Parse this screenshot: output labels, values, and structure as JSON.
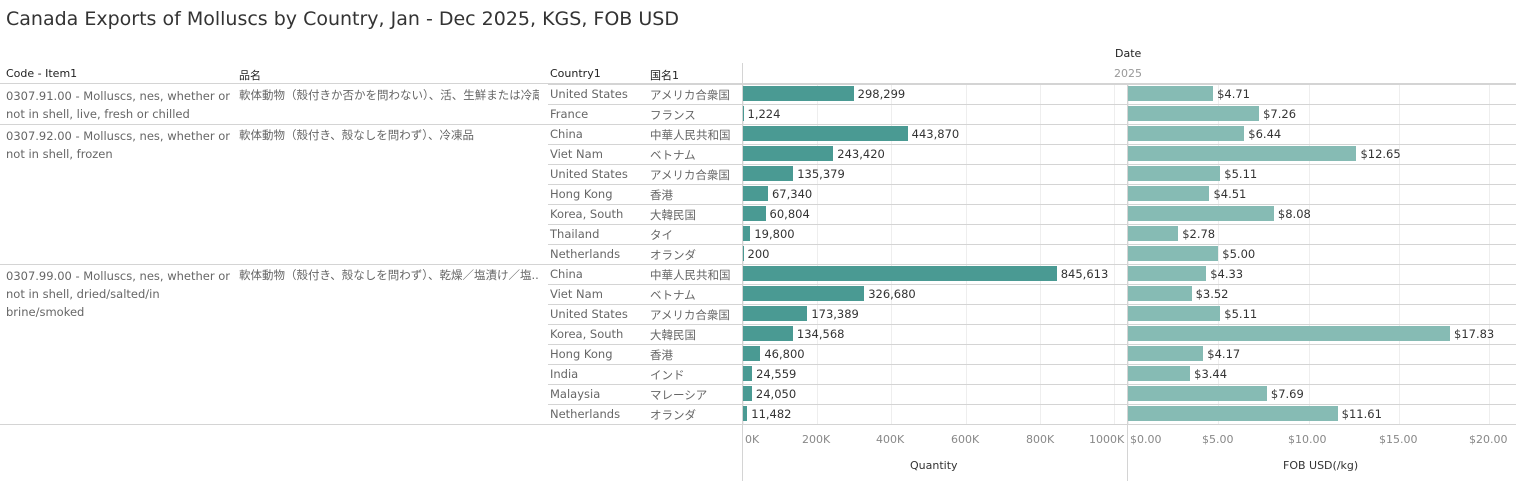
{
  "title": "Canada Exports of Molluscs by Country, Jan - Dec 2025, KGS, FOB USD",
  "headers": {
    "code": "Code - Item1",
    "name_jp": "品名",
    "country": "Country1",
    "country_jp": "国名1",
    "date": "Date",
    "year": "2025"
  },
  "groups": [
    {
      "code": "0307.91.00 - Molluscs, nes, whether or not in shell, live, fresh or chilled",
      "name_jp": "軟体動物（殻付きか否かを問わない）、活、生鮮または冷蔵",
      "rows": 2
    },
    {
      "code": "0307.92.00 - Molluscs, nes, whether or not in shell, frozen",
      "name_jp": "軟体動物（殻付き、殻なしを問わず）、冷凍品",
      "rows": 7
    },
    {
      "code": "0307.99.00 - Molluscs, nes, whether or not in shell, dried/salted/in brine/smoked",
      "name_jp": "軟体動物（殻付き、殻なしを問わず）、乾燥／塩漬け／塩..",
      "rows": 8
    }
  ],
  "chart_data": [
    {
      "type": "bar",
      "title": "Quantity",
      "xlabel": "Quantity",
      "xlim": [
        0,
        1000000
      ],
      "ticks": [
        "0K",
        "200K",
        "400K",
        "600K",
        "800K",
        "1000K"
      ],
      "categories": [
        "United States",
        "France",
        "China",
        "Viet Nam",
        "United States",
        "Hong Kong",
        "Korea, South",
        "Thailand",
        "Netherlands",
        "China",
        "Viet Nam",
        "United States",
        "Korea, South",
        "Hong Kong",
        "India",
        "Malaysia",
        "Netherlands"
      ],
      "categories_jp": [
        "アメリカ合衆国",
        "フランス",
        "中華人民共和国",
        "ベトナム",
        "アメリカ合衆国",
        "香港",
        "大韓民国",
        "タイ",
        "オランダ",
        "中華人民共和国",
        "ベトナム",
        "アメリカ合衆国",
        "大韓民国",
        "香港",
        "インド",
        "マレーシア",
        "オランダ"
      ],
      "values": [
        298299,
        1224,
        443870,
        243420,
        135379,
        67340,
        60804,
        19800,
        200,
        845613,
        326680,
        173389,
        134568,
        46800,
        24559,
        24050,
        11482
      ],
      "labels": [
        "298,299",
        "1,224",
        "443,870",
        "243,420",
        "135,379",
        "67,340",
        "60,804",
        "19,800",
        "200",
        "845,613",
        "326,680",
        "173,389",
        "134,568",
        "46,800",
        "24,559",
        "24,050",
        "11,482"
      ]
    },
    {
      "type": "bar",
      "title": "FOB USD(/kg)",
      "xlabel": "FOB USD(/kg)",
      "xlim": [
        0,
        20
      ],
      "ticks": [
        "$0.00",
        "$5.00",
        "$10.00",
        "$15.00",
        "$20.00"
      ],
      "values": [
        4.71,
        7.26,
        6.44,
        12.65,
        5.11,
        4.51,
        8.08,
        2.78,
        5.0,
        4.33,
        3.52,
        5.11,
        17.83,
        4.17,
        3.44,
        7.69,
        11.61
      ],
      "labels": [
        "$4.71",
        "$7.26",
        "$6.44",
        "$12.65",
        "$5.11",
        "$4.51",
        "$8.08",
        "$2.78",
        "$5.00",
        "$4.33",
        "$3.52",
        "$5.11",
        "$17.83",
        "$4.17",
        "$3.44",
        "$7.69",
        "$11.61"
      ]
    }
  ],
  "colors": {
    "quantity": "#4a9a93",
    "price": "#86bbb4"
  }
}
